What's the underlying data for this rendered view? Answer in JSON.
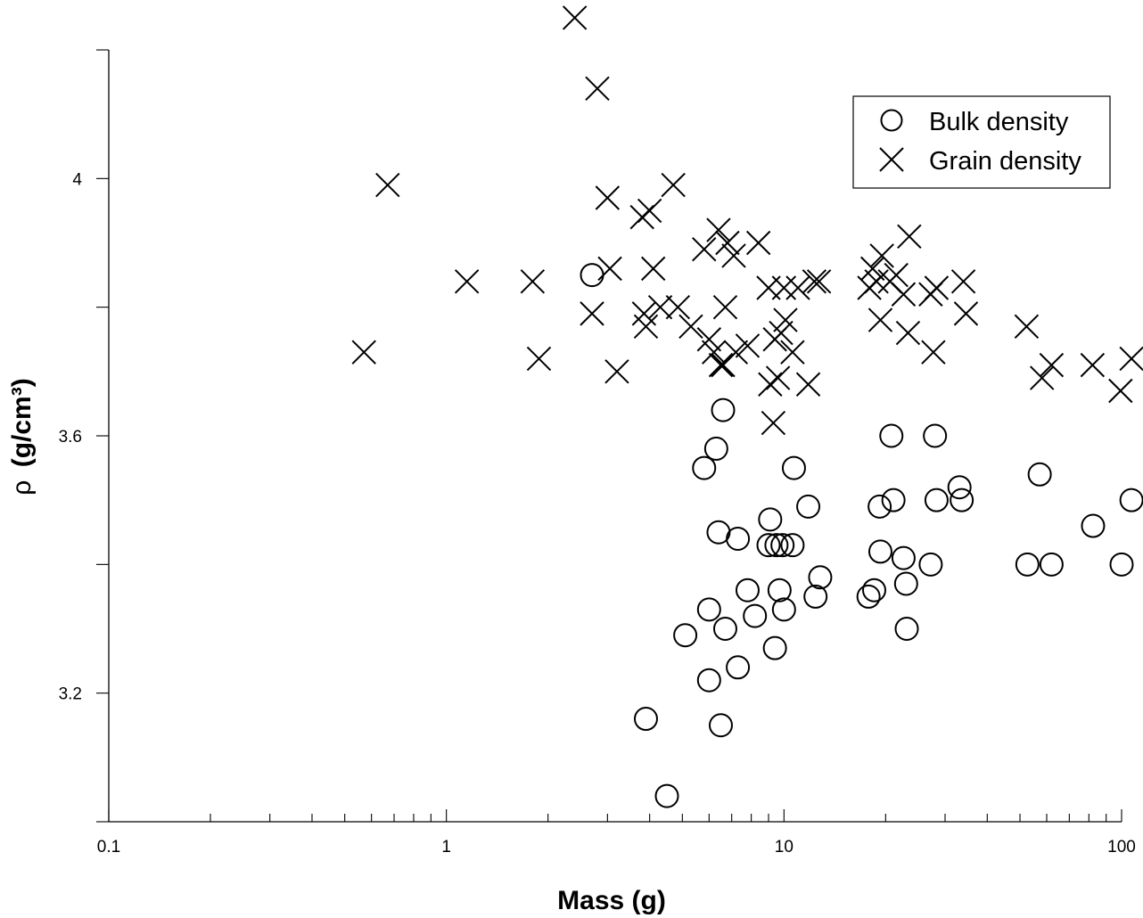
{
  "chart_data": {
    "type": "scatter",
    "xlabel": "Mass (g)",
    "ylabel_symbol": "ρ",
    "ylabel": "(g/cm³)",
    "x_scale": "log",
    "xlim": [
      0.1,
      100
    ],
    "ylim": [
      3.0,
      4.2
    ],
    "x_ticks": [
      0.1,
      1,
      10,
      100
    ],
    "x_tick_labels": [
      "0.1",
      "1",
      "10",
      "100"
    ],
    "y_ticks": [
      3.2,
      3.6,
      4.0
    ],
    "y_tick_labels": [
      "3.2",
      "3.6",
      "4"
    ],
    "y_minor_ticks": [
      3.0,
      3.4,
      3.8,
      4.2
    ],
    "grid": false,
    "legend_position": "top-right",
    "series": [
      {
        "name": "Bulk density",
        "marker": "circle",
        "points": [
          [
            2.7,
            3.85
          ],
          [
            3.9,
            3.16
          ],
          [
            4.5,
            3.04
          ],
          [
            5.1,
            3.29
          ],
          [
            5.8,
            3.55
          ],
          [
            6.0,
            3.33
          ],
          [
            6.0,
            3.22
          ],
          [
            6.3,
            3.58
          ],
          [
            6.4,
            3.45
          ],
          [
            6.5,
            3.15
          ],
          [
            6.6,
            3.64
          ],
          [
            6.7,
            3.3
          ],
          [
            7.3,
            3.24
          ],
          [
            7.3,
            3.44
          ],
          [
            7.8,
            3.36
          ],
          [
            8.2,
            3.32
          ],
          [
            9.0,
            3.43
          ],
          [
            9.1,
            3.47
          ],
          [
            9.4,
            3.27
          ],
          [
            9.5,
            3.43
          ],
          [
            9.7,
            3.36
          ],
          [
            9.9,
            3.43
          ],
          [
            10.0,
            3.33
          ],
          [
            10.6,
            3.43
          ],
          [
            10.7,
            3.55
          ],
          [
            11.8,
            3.49
          ],
          [
            12.4,
            3.35
          ],
          [
            12.8,
            3.38
          ],
          [
            17.8,
            3.35
          ],
          [
            18.5,
            3.36
          ],
          [
            19.2,
            3.49
          ],
          [
            19.3,
            3.42
          ],
          [
            20.8,
            3.6
          ],
          [
            21.1,
            3.5
          ],
          [
            22.6,
            3.41
          ],
          [
            23.0,
            3.37
          ],
          [
            23.1,
            3.3
          ],
          [
            27.2,
            3.4
          ],
          [
            28.0,
            3.6
          ],
          [
            28.3,
            3.5
          ],
          [
            33.1,
            3.52
          ],
          [
            33.6,
            3.5
          ],
          [
            52.6,
            3.4
          ],
          [
            57.2,
            3.54
          ],
          [
            62.0,
            3.4
          ],
          [
            82.3,
            3.46
          ],
          [
            100.0,
            3.4
          ],
          [
            107.0,
            3.5
          ]
        ]
      },
      {
        "name": "Grain density",
        "marker": "x",
        "points": [
          [
            0.57,
            3.73
          ],
          [
            0.67,
            3.99
          ],
          [
            1.15,
            3.84
          ],
          [
            1.8,
            3.84
          ],
          [
            1.88,
            3.72
          ],
          [
            2.4,
            4.25
          ],
          [
            2.7,
            3.79
          ],
          [
            2.8,
            4.14
          ],
          [
            3.0,
            3.97
          ],
          [
            3.05,
            3.86
          ],
          [
            3.2,
            3.7
          ],
          [
            3.8,
            3.94
          ],
          [
            3.85,
            3.79
          ],
          [
            3.9,
            3.77
          ],
          [
            4.0,
            3.95
          ],
          [
            4.1,
            3.86
          ],
          [
            4.3,
            3.8
          ],
          [
            4.7,
            3.99
          ],
          [
            4.85,
            3.8
          ],
          [
            5.3,
            3.77
          ],
          [
            5.8,
            3.89
          ],
          [
            6.0,
            3.75
          ],
          [
            6.2,
            3.73
          ],
          [
            6.4,
            3.92
          ],
          [
            6.5,
            3.71
          ],
          [
            6.6,
            3.71
          ],
          [
            6.7,
            3.8
          ],
          [
            6.8,
            3.9
          ],
          [
            7.1,
            3.88
          ],
          [
            7.2,
            3.73
          ],
          [
            7.8,
            3.74
          ],
          [
            8.4,
            3.9
          ],
          [
            9.0,
            3.83
          ],
          [
            9.1,
            3.68
          ],
          [
            9.3,
            3.62
          ],
          [
            9.4,
            3.75
          ],
          [
            9.6,
            3.69
          ],
          [
            9.8,
            3.76
          ],
          [
            10.0,
            3.83
          ],
          [
            10.1,
            3.78
          ],
          [
            10.6,
            3.73
          ],
          [
            11.0,
            3.83
          ],
          [
            11.8,
            3.68
          ],
          [
            12.3,
            3.84
          ],
          [
            12.7,
            3.84
          ],
          [
            17.9,
            3.83
          ],
          [
            18.3,
            3.86
          ],
          [
            18.8,
            3.84
          ],
          [
            19.3,
            3.78
          ],
          [
            19.5,
            3.88
          ],
          [
            20.6,
            3.84
          ],
          [
            21.5,
            3.85
          ],
          [
            22.6,
            3.82
          ],
          [
            23.3,
            3.76
          ],
          [
            23.5,
            3.91
          ],
          [
            27.2,
            3.82
          ],
          [
            27.7,
            3.73
          ],
          [
            28.3,
            3.83
          ],
          [
            34.0,
            3.84
          ],
          [
            34.6,
            3.79
          ],
          [
            52.3,
            3.77
          ],
          [
            58.1,
            3.69
          ],
          [
            62.0,
            3.71
          ],
          [
            82.0,
            3.71
          ],
          [
            99.3,
            3.67
          ],
          [
            107.0,
            3.72
          ]
        ]
      }
    ]
  }
}
